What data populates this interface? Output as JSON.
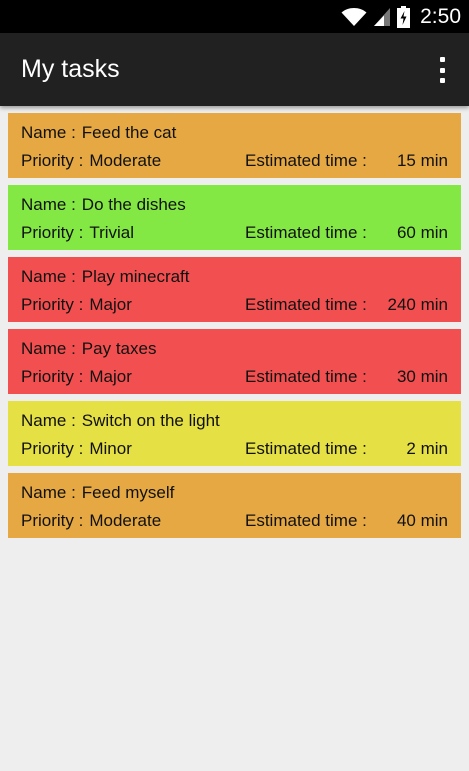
{
  "status_bar": {
    "time": "2:50",
    "icons": [
      "wifi-icon",
      "signal-icon",
      "battery-charging-icon"
    ]
  },
  "action_bar": {
    "title": "My tasks",
    "overflow_icon": "overflow-menu-icon"
  },
  "labels": {
    "name": "Name :",
    "priority": "Priority :",
    "estimated_time": "Estimated time :"
  },
  "tasks": [
    {
      "name": "Feed the cat",
      "priority": "Moderate",
      "time": "15 min",
      "color": "#e5a843"
    },
    {
      "name": "Do the dishes",
      "priority": "Trivial",
      "time": "60 min",
      "color": "#84e844"
    },
    {
      "name": "Play minecraft",
      "priority": "Major",
      "time": "240 min",
      "color": "#f25050"
    },
    {
      "name": "Pay taxes",
      "priority": "Major",
      "time": "30 min",
      "color": "#f25050"
    },
    {
      "name": "Switch on the light",
      "priority": "Minor",
      "time": "2 min",
      "color": "#e5e044"
    },
    {
      "name": "Feed myself",
      "priority": "Moderate",
      "time": "40 min",
      "color": "#e5a843"
    }
  ]
}
